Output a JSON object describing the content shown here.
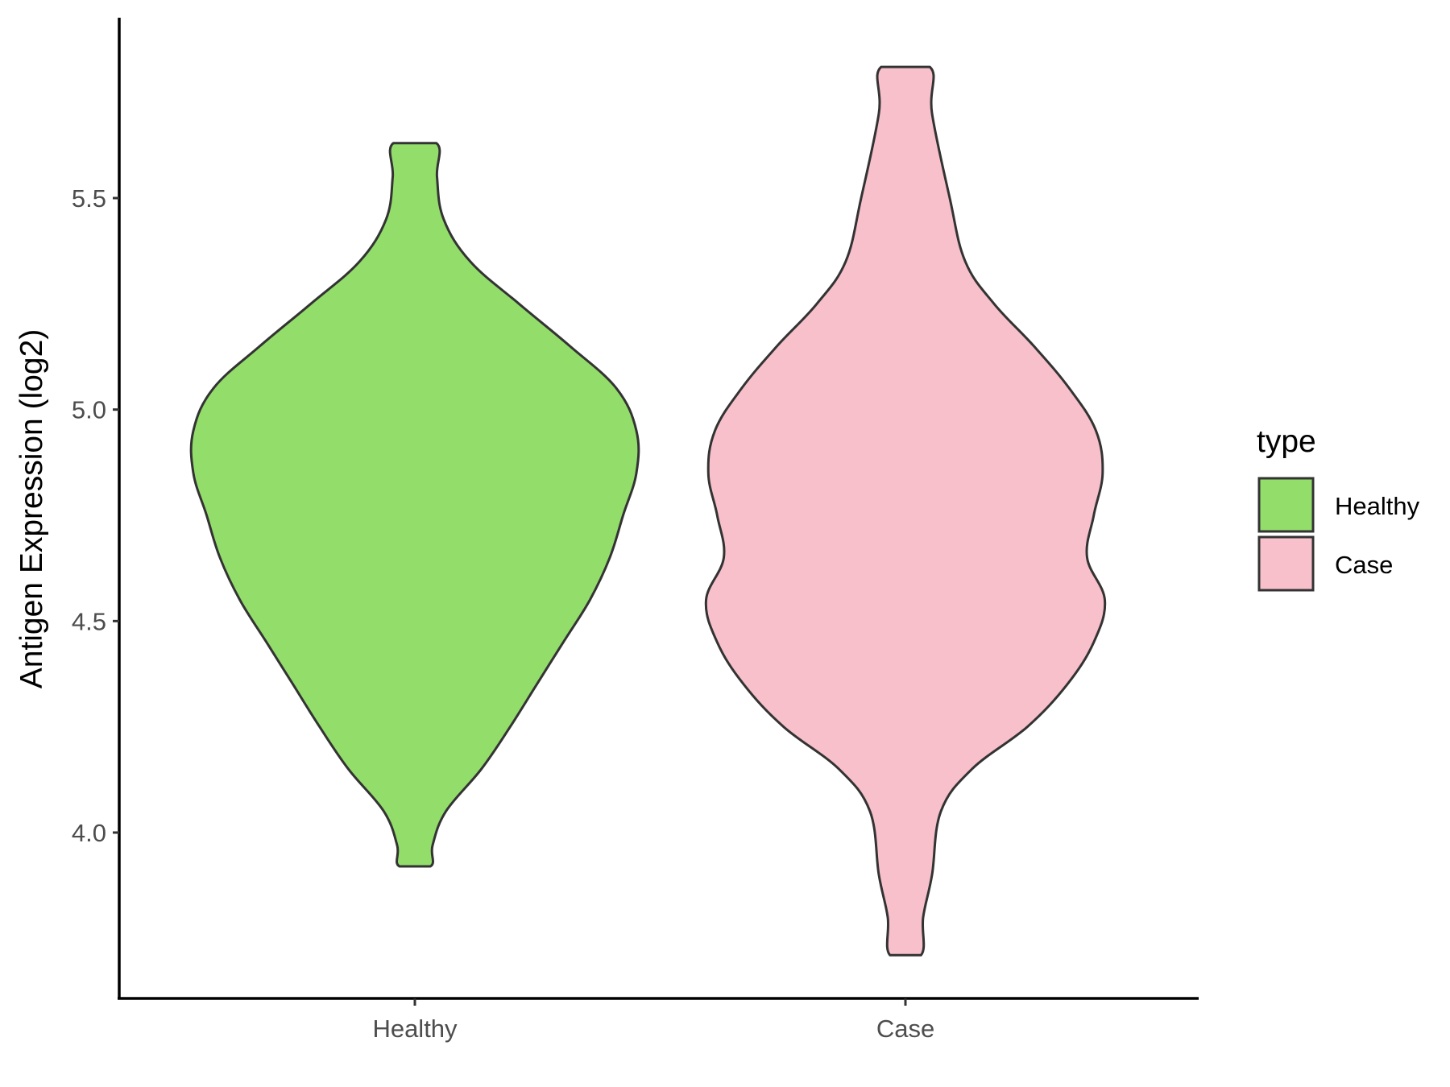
{
  "chart_data": {
    "type": "violin",
    "title": "",
    "xlabel": "",
    "ylabel": "Antigen Expression (log2)",
    "categories": [
      "Healthy",
      "Case"
    ],
    "yticks": [
      "4.0",
      "4.5",
      "5.0",
      "5.5"
    ],
    "ylim": [
      3.65,
      5.96
    ],
    "legend": {
      "title": "type",
      "position": "right",
      "entries": [
        {
          "label": "Healthy",
          "color": "#93dd6b"
        },
        {
          "label": "Case",
          "color": "#f7c0cb"
        }
      ]
    },
    "series": [
      {
        "name": "Healthy",
        "color": "#93dd6b",
        "density": [
          [
            5.63,
            0.097
          ],
          [
            5.55,
            0.1
          ],
          [
            5.45,
            0.13
          ],
          [
            5.35,
            0.25
          ],
          [
            5.25,
            0.47
          ],
          [
            5.15,
            0.7
          ],
          [
            5.05,
            0.91
          ],
          [
            4.95,
            1.0
          ],
          [
            4.85,
            1.0
          ],
          [
            4.75,
            0.94
          ],
          [
            4.65,
            0.88
          ],
          [
            4.55,
            0.79
          ],
          [
            4.45,
            0.67
          ],
          [
            4.35,
            0.55
          ],
          [
            4.25,
            0.43
          ],
          [
            4.15,
            0.3
          ],
          [
            4.05,
            0.14
          ],
          [
            3.97,
            0.08
          ],
          [
            3.92,
            0.07
          ]
        ]
      },
      {
        "name": "Case",
        "color": "#f7c0cb",
        "density": [
          [
            5.81,
            0.11
          ],
          [
            5.7,
            0.12
          ],
          [
            5.5,
            0.2
          ],
          [
            5.35,
            0.27
          ],
          [
            5.25,
            0.4
          ],
          [
            5.15,
            0.58
          ],
          [
            5.05,
            0.74
          ],
          [
            4.95,
            0.86
          ],
          [
            4.85,
            0.89
          ],
          [
            4.75,
            0.85
          ],
          [
            4.65,
            0.82
          ],
          [
            4.55,
            0.9
          ],
          [
            4.45,
            0.85
          ],
          [
            4.35,
            0.73
          ],
          [
            4.25,
            0.55
          ],
          [
            4.15,
            0.3
          ],
          [
            4.05,
            0.16
          ],
          [
            3.9,
            0.12
          ],
          [
            3.8,
            0.08
          ],
          [
            3.71,
            0.07
          ]
        ]
      }
    ]
  }
}
